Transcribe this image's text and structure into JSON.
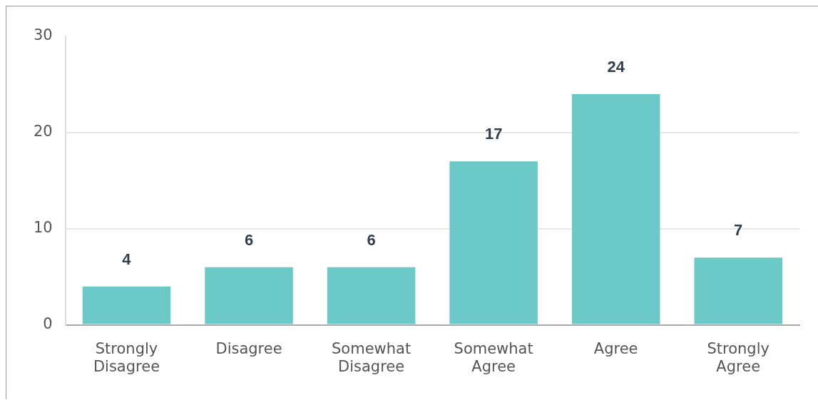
{
  "chart_data": {
    "type": "bar",
    "categories": [
      "Strongly Disagree",
      "Disagree",
      "Somewhat Disagree",
      "Somewhat Agree",
      "Agree",
      "Strongly Agree"
    ],
    "values": [
      4,
      6,
      6,
      17,
      24,
      7
    ],
    "color": "#6bc9c8",
    "ylim": [
      0,
      30
    ],
    "yticks": [
      0,
      10,
      20,
      30
    ],
    "grid": "y",
    "legend": false,
    "data_labels": true
  }
}
